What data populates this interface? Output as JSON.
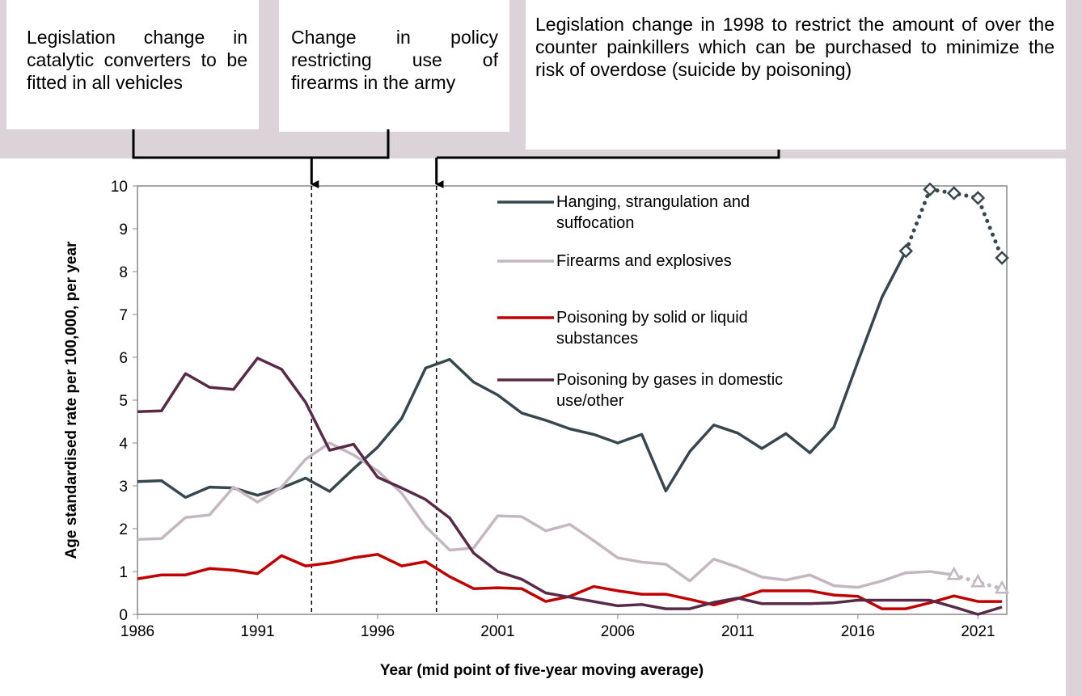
{
  "chart_data": {
    "type": "line",
    "xlabel": "Year (mid point of five-year moving average)",
    "ylabel": "Age standardised rate per 100,000, per year",
    "x": [
      1986,
      1987,
      1988,
      1989,
      1990,
      1991,
      1992,
      1993,
      1994,
      1995,
      1996,
      1997,
      1998,
      1999,
      2000,
      2001,
      2002,
      2003,
      2004,
      2005,
      2006,
      2007,
      2008,
      2009,
      2010,
      2011,
      2012,
      2013,
      2014,
      2015,
      2016,
      2017,
      2018,
      2019,
      2020,
      2021,
      2022
    ],
    "xlim": [
      1986,
      2022.2
    ],
    "xticks": [
      1986,
      1991,
      1996,
      2001,
      2006,
      2011,
      2016,
      2021
    ],
    "ylim": [
      0,
      10
    ],
    "yticks": [
      0,
      1,
      2,
      3,
      4,
      5,
      6,
      7,
      8,
      9,
      10
    ],
    "series": [
      {
        "name": "Hanging, strangulation and suffocation",
        "color": "#37474f",
        "dotted_from": 2018,
        "marker": "diamond",
        "values": [
          3.1,
          3.12,
          2.73,
          2.97,
          2.95,
          2.78,
          2.95,
          3.18,
          2.87,
          3.4,
          3.9,
          4.57,
          5.75,
          5.95,
          5.42,
          5.12,
          4.7,
          4.53,
          4.33,
          4.2,
          4.0,
          4.2,
          2.88,
          3.8,
          4.42,
          4.23,
          3.87,
          4.22,
          3.77,
          4.37,
          5.9,
          7.4,
          8.48,
          9.92,
          9.83,
          9.72,
          8.32
        ]
      },
      {
        "name": "Firearms and explosives",
        "color": "#c4b7c0",
        "dotted_from": 2020,
        "marker": "triangle",
        "values": [
          1.75,
          1.77,
          2.26,
          2.32,
          2.97,
          2.62,
          2.97,
          3.62,
          4.0,
          3.72,
          3.35,
          2.83,
          2.05,
          1.5,
          1.55,
          2.3,
          2.28,
          1.95,
          2.1,
          1.72,
          1.32,
          1.22,
          1.17,
          0.78,
          1.29,
          1.1,
          0.87,
          0.8,
          0.92,
          0.67,
          0.63,
          0.78,
          0.97,
          1.0,
          0.92,
          0.75,
          0.6
        ]
      },
      {
        "name": "Poisoning by solid or liquid substances",
        "color": "#c00000",
        "values": [
          0.83,
          0.92,
          0.92,
          1.07,
          1.03,
          0.95,
          1.37,
          1.13,
          1.2,
          1.32,
          1.4,
          1.13,
          1.23,
          0.88,
          0.6,
          0.62,
          0.6,
          0.3,
          0.42,
          0.65,
          0.55,
          0.47,
          0.47,
          0.35,
          0.22,
          0.37,
          0.55,
          0.55,
          0.55,
          0.45,
          0.42,
          0.13,
          0.13,
          0.27,
          0.43,
          0.3,
          0.3
        ]
      },
      {
        "name": "Poisoning by gases in domestic use/other",
        "color": "#582a48",
        "values": [
          4.73,
          4.75,
          5.62,
          5.3,
          5.25,
          5.98,
          5.72,
          4.95,
          3.83,
          3.97,
          3.2,
          2.95,
          2.68,
          2.25,
          1.43,
          1.0,
          0.82,
          0.5,
          0.4,
          0.3,
          0.2,
          0.23,
          0.13,
          0.13,
          0.28,
          0.38,
          0.25,
          0.25,
          0.25,
          0.27,
          0.33,
          0.33,
          0.33,
          0.33,
          0.17,
          0.0,
          0.17
        ]
      }
    ],
    "annotations": [
      {
        "text": "Legislation change in catalytic converters to be fitted in all vehicles",
        "x": 1993.25
      },
      {
        "text": "Change in policy restricting use of firearms in the army",
        "x": 1993.25
      },
      {
        "text": "Legislation change in 1998 to restrict the amount of over the counter painkillers which can be purchased to minimize the risk of overdose (suicide by poisoning)",
        "x": 1998.45
      }
    ]
  }
}
